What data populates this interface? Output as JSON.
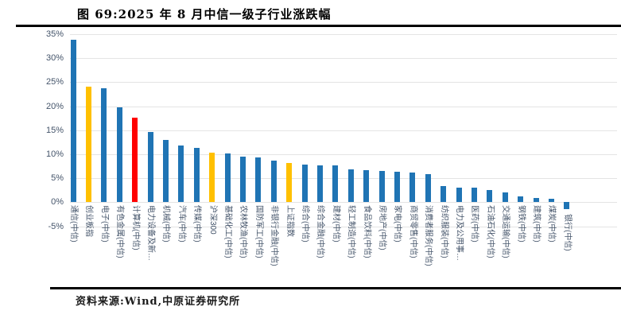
{
  "figure": {
    "title": "图 69:2025 年 8 月中信一级子行业涨跌幅",
    "source": "资料来源:Wind,中原证券研究所"
  },
  "chart_data": {
    "type": "bar",
    "title": "2025 年 8 月中信一级子行业涨跌幅",
    "xlabel": "",
    "ylabel": "",
    "ylim": [
      -5,
      35
    ],
    "y_ticks": [
      "35%",
      "30%",
      "25%",
      "20%",
      "15%",
      "10%",
      "5%",
      "0%",
      "-5%"
    ],
    "grid": true,
    "legend": "none",
    "categories": [
      "通信(中信)",
      "创业板指",
      "电子(中信)",
      "有色金属(中信)",
      "计算机(中信)",
      "电力设备及新…",
      "机械(中信)",
      "汽车(中信)",
      "传媒(中信)",
      "沪深300",
      "基础化工(中信)",
      "农林牧渔(中信)",
      "国防军工(中信)",
      "非银行金融(中信)",
      "上证指数",
      "综合(中信)",
      "综合金融(中信)",
      "建材(中信)",
      "轻工制造(中信)",
      "食品饮料(中信)",
      "房地产(中信)",
      "家电(中信)",
      "商贸零售(中信)",
      "消费者服务(中信)",
      "纺织服装(中信)",
      "电力及公用事…",
      "医药(中信)",
      "石油石化(中信)",
      "交通运输(中信)",
      "钢铁(中信)",
      "建筑(中信)",
      "煤炭(中信)",
      "银行(中信)"
    ],
    "values": [
      33.8,
      24.1,
      23.7,
      19.7,
      17.6,
      14.6,
      12.9,
      11.8,
      11.3,
      10.3,
      10.1,
      9.5,
      9.4,
      8.7,
      8.1,
      7.8,
      7.7,
      7.6,
      6.8,
      6.7,
      6.6,
      6.3,
      6.2,
      5.9,
      3.3,
      3.1,
      3.0,
      2.6,
      2.0,
      1.2,
      0.9,
      0.7,
      -1.4
    ],
    "bar_colors": [
      "blue",
      "yellow",
      "blue",
      "blue",
      "red",
      "blue",
      "blue",
      "blue",
      "blue",
      "yellow",
      "blue",
      "blue",
      "blue",
      "blue",
      "yellow",
      "blue",
      "blue",
      "blue",
      "blue",
      "blue",
      "blue",
      "blue",
      "blue",
      "blue",
      "blue",
      "blue",
      "blue",
      "blue",
      "blue",
      "blue",
      "blue",
      "blue",
      "blue"
    ],
    "palette": {
      "blue": "#1F74B4",
      "yellow": "#FFC000",
      "red": "#FF0000",
      "grid": "#e4e4e4",
      "axis_text": "#44546A"
    }
  }
}
